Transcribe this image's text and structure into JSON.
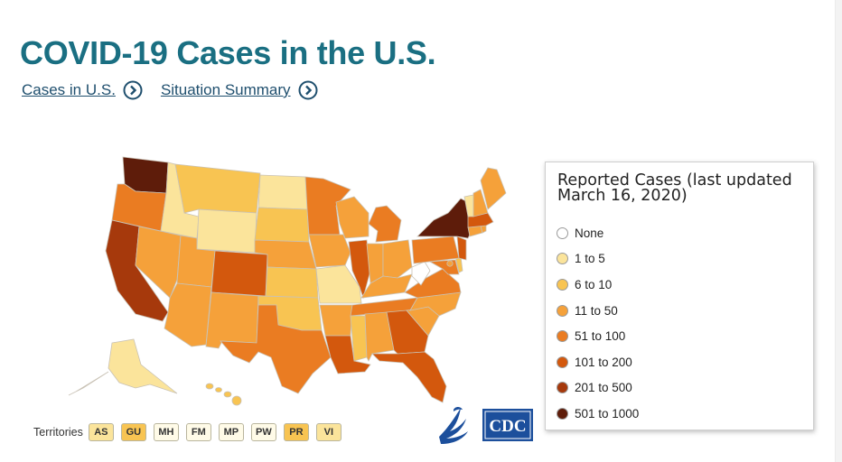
{
  "page": {
    "title": "COVID-19 Cases in the U.S.",
    "links": [
      {
        "label": "Cases in U.S.",
        "icon": "chevron-circle-right-icon"
      },
      {
        "label": "Situation Summary",
        "icon": "chevron-circle-right-icon"
      }
    ]
  },
  "colors": {
    "title": "#1a6f82",
    "link": "#1f4f6e",
    "none": "#ffffff",
    "1 to 5": "#fbe49b",
    "6 to 10": "#f8c452",
    "11 to 50": "#f5a13a",
    "51 to 100": "#ea7c22",
    "101 to 200": "#d3580d",
    "201 to 500": "#a6390c",
    "501 to 1000": "#5e1c0a"
  },
  "legend": {
    "title": "Reported Cases (last updated March 16, 2020)",
    "items": [
      {
        "label": "None",
        "color": "#ffffff"
      },
      {
        "label": "1 to 5",
        "color": "#fbe49b"
      },
      {
        "label": "6 to 10",
        "color": "#f8c452"
      },
      {
        "label": "11 to 50",
        "color": "#f5a13a"
      },
      {
        "label": "51 to 100",
        "color": "#ea7c22"
      },
      {
        "label": "101 to 200",
        "color": "#d3580d"
      },
      {
        "label": "201 to 500",
        "color": "#a6390c"
      },
      {
        "label": "501 to 1000",
        "color": "#5e1c0a"
      }
    ]
  },
  "territories": {
    "label": "Territories",
    "buttons": [
      {
        "code": "AS",
        "color": "#fbe49b"
      },
      {
        "code": "GU",
        "color": "#f8c452"
      },
      {
        "code": "MH",
        "color": "#fffbe8"
      },
      {
        "code": "FM",
        "color": "#fffbe8"
      },
      {
        "code": "MP",
        "color": "#fffbe8"
      },
      {
        "code": "PW",
        "color": "#fffbe8"
      },
      {
        "code": "PR",
        "color": "#f8c452"
      },
      {
        "code": "VI",
        "color": "#fbe49b"
      }
    ]
  },
  "states": [
    {
      "id": "WA",
      "color": "#5e1c0a"
    },
    {
      "id": "OR",
      "color": "#ea7c22"
    },
    {
      "id": "CA",
      "color": "#a6390c"
    },
    {
      "id": "ID",
      "color": "#fbe49b"
    },
    {
      "id": "NV",
      "color": "#f5a13a"
    },
    {
      "id": "MT",
      "color": "#f8c452"
    },
    {
      "id": "WY",
      "color": "#fbe49b"
    },
    {
      "id": "UT",
      "color": "#f5a13a"
    },
    {
      "id": "AZ",
      "color": "#f5a13a"
    },
    {
      "id": "CO",
      "color": "#d3580d"
    },
    {
      "id": "NM",
      "color": "#f5a13a"
    },
    {
      "id": "ND",
      "color": "#fbe49b"
    },
    {
      "id": "SD",
      "color": "#f8c452"
    },
    {
      "id": "NE",
      "color": "#f5a13a"
    },
    {
      "id": "KS",
      "color": "#f8c452"
    },
    {
      "id": "OK",
      "color": "#f8c452"
    },
    {
      "id": "TX",
      "color": "#ea7c22"
    },
    {
      "id": "MN",
      "color": "#ea7c22"
    },
    {
      "id": "IA",
      "color": "#f5a13a"
    },
    {
      "id": "MO",
      "color": "#fbe49b"
    },
    {
      "id": "AR",
      "color": "#f5a13a"
    },
    {
      "id": "LA",
      "color": "#d3580d"
    },
    {
      "id": "WI",
      "color": "#f5a13a"
    },
    {
      "id": "IL",
      "color": "#d3580d"
    },
    {
      "id": "MS",
      "color": "#f8c452"
    },
    {
      "id": "MI",
      "color": "#ea7c22"
    },
    {
      "id": "IN",
      "color": "#f5a13a"
    },
    {
      "id": "KY",
      "color": "#f5a13a"
    },
    {
      "id": "TN",
      "color": "#ea7c22"
    },
    {
      "id": "AL",
      "color": "#f5a13a"
    },
    {
      "id": "OH",
      "color": "#f5a13a"
    },
    {
      "id": "WV",
      "color": "#ffffff"
    },
    {
      "id": "GA",
      "color": "#d3580d"
    },
    {
      "id": "FL",
      "color": "#d3580d"
    },
    {
      "id": "SC",
      "color": "#f5a13a"
    },
    {
      "id": "NC",
      "color": "#f5a13a"
    },
    {
      "id": "VA",
      "color": "#ea7c22"
    },
    {
      "id": "PA",
      "color": "#ea7c22"
    },
    {
      "id": "NY",
      "color": "#5e1c0a"
    },
    {
      "id": "ME",
      "color": "#f5a13a"
    },
    {
      "id": "NH",
      "color": "#f5a13a"
    },
    {
      "id": "VT",
      "color": "#fbe49b"
    },
    {
      "id": "MA",
      "color": "#d3580d"
    },
    {
      "id": "RI",
      "color": "#f5a13a"
    },
    {
      "id": "CT",
      "color": "#f5a13a"
    },
    {
      "id": "NJ",
      "color": "#d3580d"
    },
    {
      "id": "DE",
      "color": "#f8c452"
    },
    {
      "id": "MD",
      "color": "#ea7c22"
    },
    {
      "id": "DC",
      "color": "#f5a13a"
    },
    {
      "id": "AK",
      "color": "#fbe49b"
    },
    {
      "id": "HI",
      "color": "#f8c452"
    }
  ],
  "logos": [
    {
      "name": "hhs-eagle-logo",
      "color": "#1c4f9c"
    },
    {
      "name": "cdc-logo",
      "color": "#1c4f9c",
      "text": "CDC"
    }
  ]
}
